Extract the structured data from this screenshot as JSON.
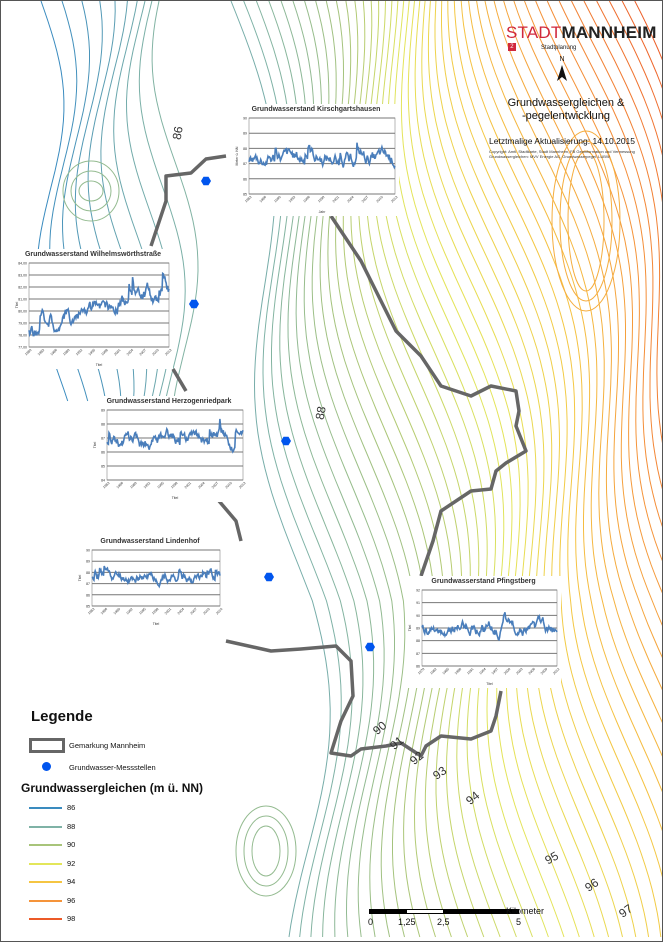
{
  "header": {
    "brand_stadt": "STADT",
    "brand_mannheim": "MANNHEIM",
    "brand_mark": "2",
    "department": "Stadtplanung",
    "north": "N",
    "title_line1": "Grundwassergleichen &",
    "title_line2": "-pegelentwicklung",
    "update": "Letztmalige Aktualisierung: 14.10.2015",
    "copyright_line1": "Copyright: Amtl. Stadtkarte, Stadt Mannheim, FB Geoinformation und Vermessung",
    "copyright_line2": "Grundwassergleichen: MVV Energie AG, Grundwasserpegel: LUBW"
  },
  "contour_labels": [
    "86",
    "88",
    "90",
    "91",
    "92",
    "93",
    "94",
    "95",
    "96",
    "97"
  ],
  "charts": [
    {
      "title": "Grundwasserstand Kirschgartshausen",
      "ylabel": "Meter ü. NN",
      "xlabel": "Jahr",
      "yticks": [
        "85",
        "86",
        "87",
        "88",
        "89",
        "90"
      ],
      "xticks": [
        "1983",
        "1986",
        "1990",
        "1993",
        "1996",
        "1999",
        "2001",
        "2004",
        "2007",
        "2010",
        "2013"
      ]
    },
    {
      "title": "Grundwasserstand Wilhelmswörthstraße",
      "ylabel": "Titel",
      "xlabel": "Titel",
      "yticks": [
        "77,00",
        "78,00",
        "79,00",
        "80,00",
        "81,00",
        "82,00",
        "83,00",
        "84,00"
      ],
      "xticks": [
        "1980",
        "1983",
        "1986",
        "1989",
        "1992",
        "1995",
        "1998",
        "2001",
        "2004",
        "2007",
        "2010",
        "2013"
      ]
    },
    {
      "title": "Grundwasserstand Herzogenriedpark",
      "ylabel": "Titel",
      "xlabel": "Titel",
      "yticks": [
        "84",
        "85",
        "86",
        "87",
        "88",
        "89"
      ],
      "xticks": [
        "1983",
        "1986",
        "1989",
        "1992",
        "1995",
        "1998",
        "2001",
        "2004",
        "2007",
        "2010",
        "2013"
      ]
    },
    {
      "title": "Grundwasserstand Lindenhof",
      "ylabel": "Titel",
      "xlabel": "Titel",
      "yticks": [
        "85",
        "86",
        "87",
        "88",
        "89",
        "90"
      ],
      "xticks": [
        "1983",
        "1986",
        "1989",
        "1992",
        "1995",
        "1998",
        "2001",
        "2004",
        "2007",
        "2010",
        "2014"
      ]
    },
    {
      "title": "Grundwasserstand Pfingstberg",
      "ylabel": "Titel",
      "xlabel": "Titel",
      "yticks": [
        "86",
        "87",
        "88",
        "89",
        "90",
        "91",
        "92"
      ],
      "xticks": [
        "1979",
        "1982",
        "1985",
        "1988",
        "1991",
        "1994",
        "1997",
        "2000",
        "2003",
        "2006",
        "2009",
        "2012"
      ]
    }
  ],
  "legend": {
    "title": "Legende",
    "boundary": "Gemarkung Mannheim",
    "wells": "Grundwasser-Messstellen",
    "contours_title": "Grundwassergleichen (m ü. NN)",
    "levels": [
      {
        "label": "86",
        "color": "#3a8bbf"
      },
      {
        "label": "88",
        "color": "#7fb2a6"
      },
      {
        "label": "90",
        "color": "#a8c47a"
      },
      {
        "label": "92",
        "color": "#e3e65a"
      },
      {
        "label": "94",
        "color": "#f5c542"
      },
      {
        "label": "96",
        "color": "#f5943a"
      },
      {
        "label": "98",
        "color": "#ec5a28"
      }
    ]
  },
  "scale": {
    "unit": "Kilometer",
    "ticks": [
      "0",
      "1,25",
      "2,5",
      "5"
    ]
  }
}
